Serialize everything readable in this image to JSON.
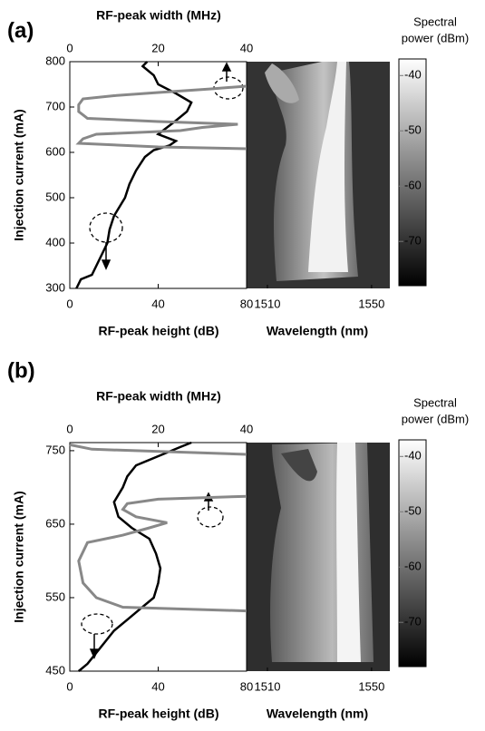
{
  "chart_data": [
    {
      "type": "line",
      "panel_label": "(a)",
      "x2_label": "RF-peak width (MHz)",
      "xlabel": "RF-peak height (dB)",
      "ylabel": "Injection current (mA)",
      "xlim": [
        0,
        80
      ],
      "xticks": [
        0,
        40,
        80
      ],
      "x2lim": [
        0,
        40
      ],
      "x2ticks": [
        0,
        20,
        40
      ],
      "ylim": [
        300,
        800
      ],
      "yticks": [
        300,
        400,
        500,
        600,
        700,
        800
      ],
      "series": [
        {
          "color": "#000000",
          "y": [
            300,
            320,
            330,
            350,
            380,
            400,
            430,
            460,
            500,
            530,
            560,
            590,
            605,
            615,
            625,
            640,
            655,
            670,
            690,
            710,
            730,
            750,
            770,
            790,
            800
          ],
          "values": [
            3,
            5,
            10,
            12,
            15,
            17,
            18,
            20,
            25,
            27,
            30,
            34,
            38,
            45,
            48,
            40,
            44,
            48,
            53,
            55,
            48,
            40,
            38,
            33,
            35
          ]
        },
        {
          "color": "#888888",
          "axis": "x2",
          "y": [
            608,
            612,
            620,
            630,
            640,
            648,
            655,
            662,
            668,
            675,
            690,
            705,
            718,
            725,
            732,
            740,
            746
          ],
          "values": [
            40,
            20,
            2,
            3,
            6,
            25,
            30,
            38,
            20,
            4,
            2,
            2,
            3,
            10,
            20,
            32,
            40
          ]
        }
      ],
      "map_xlabel": "Wavelength (nm)",
      "map_xlim": [
        1502,
        1557
      ],
      "map_xticks": [
        1510,
        1550
      ],
      "colorbar_label": [
        "Spectral",
        "power (dBm)"
      ],
      "clim": [
        -78,
        -37
      ],
      "cticks": [
        -40,
        -50,
        -60,
        -70
      ]
    },
    {
      "type": "line",
      "panel_label": "(b)",
      "x2_label": "RF-peak width (MHz)",
      "xlabel": "RF-peak height (dB)",
      "ylabel": "Injection current (mA)",
      "xlim": [
        0,
        80
      ],
      "xticks": [
        0,
        40,
        80
      ],
      "x2lim": [
        0,
        40
      ],
      "x2ticks": [
        0,
        20,
        40
      ],
      "ylim": [
        450,
        761
      ],
      "yticks": [
        450,
        550,
        650,
        750
      ],
      "series": [
        {
          "color": "#000000",
          "y": [
            450,
            460,
            475,
            490,
            505,
            520,
            535,
            550,
            570,
            590,
            610,
            630,
            645,
            660,
            680,
            700,
            715,
            730,
            745,
            755,
            761
          ],
          "values": [
            4,
            8,
            12,
            16,
            20,
            26,
            32,
            38,
            40,
            41,
            39,
            36,
            28,
            22,
            20,
            24,
            26,
            30,
            42,
            50,
            55
          ]
        },
        {
          "color": "#888888",
          "axis": "x2",
          "y": [
            532,
            537,
            550,
            570,
            600,
            625,
            635,
            645,
            652,
            660,
            670,
            678,
            684,
            688,
            null,
            745,
            752,
            758
          ],
          "values": [
            40,
            12,
            6,
            3,
            2,
            4,
            12,
            18,
            22,
            15,
            12,
            13,
            20,
            40,
            null,
            40,
            5,
            0
          ]
        }
      ],
      "map_xlabel": "Wavelength (nm)",
      "map_xlim": [
        1502,
        1557
      ],
      "map_xticks": [
        1510,
        1550
      ],
      "colorbar_label": [
        "Spectral",
        "power (dBm)"
      ],
      "clim": [
        -78,
        -37
      ],
      "cticks": [
        -40,
        -50,
        -60,
        -70
      ]
    }
  ]
}
